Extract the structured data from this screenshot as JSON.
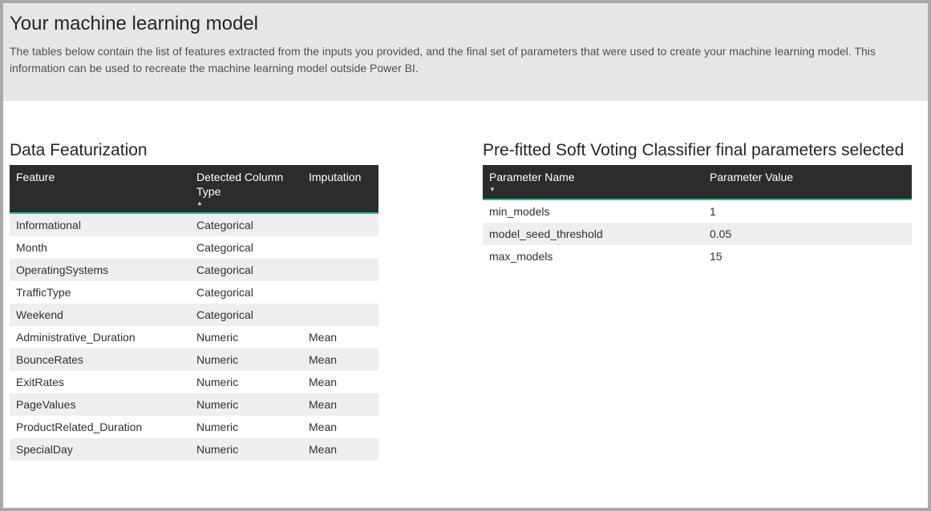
{
  "header": {
    "title": "Your machine learning model",
    "description": "The tables below contain the list of features extracted from the inputs you provided, and the final set of parameters that were used to create your machine learning model.  This information can be used to recreate the machine learning model outside Power BI."
  },
  "featurization": {
    "title": "Data Featurization",
    "columns": [
      "Feature",
      "Detected Column Type",
      "Imputation"
    ],
    "rows": [
      {
        "feature": "Informational",
        "type": "Categorical",
        "imputation": ""
      },
      {
        "feature": "Month",
        "type": "Categorical",
        "imputation": ""
      },
      {
        "feature": "OperatingSystems",
        "type": "Categorical",
        "imputation": ""
      },
      {
        "feature": "TrafficType",
        "type": "Categorical",
        "imputation": ""
      },
      {
        "feature": "Weekend",
        "type": "Categorical",
        "imputation": ""
      },
      {
        "feature": "Administrative_Duration",
        "type": "Numeric",
        "imputation": "Mean"
      },
      {
        "feature": "BounceRates",
        "type": "Numeric",
        "imputation": "Mean"
      },
      {
        "feature": "ExitRates",
        "type": "Numeric",
        "imputation": "Mean"
      },
      {
        "feature": "PageValues",
        "type": "Numeric",
        "imputation": "Mean"
      },
      {
        "feature": "ProductRelated_Duration",
        "type": "Numeric",
        "imputation": "Mean"
      },
      {
        "feature": "SpecialDay",
        "type": "Numeric",
        "imputation": "Mean"
      }
    ]
  },
  "parameters": {
    "title": "Pre-fitted Soft Voting Classifier final parameters selected",
    "columns": [
      "Parameter Name",
      "Parameter Value"
    ],
    "rows": [
      {
        "name": "min_models",
        "value": "1"
      },
      {
        "name": "model_seed_threshold",
        "value": "0.05"
      },
      {
        "name": "max_models",
        "value": "15"
      }
    ]
  },
  "styling": {
    "page_bg": "#ffffff",
    "outer_bg": "#a9a9a9",
    "header_band_bg": "#e6e6e6",
    "table_header_bg": "#2c2c2c",
    "table_header_fg": "#ffffff",
    "row_alt_bg": "#eeeeee",
    "accent_divider": "#2fb1a3",
    "title_fontsize": 24,
    "section_title_fontsize": 21,
    "body_fontsize": 14
  }
}
